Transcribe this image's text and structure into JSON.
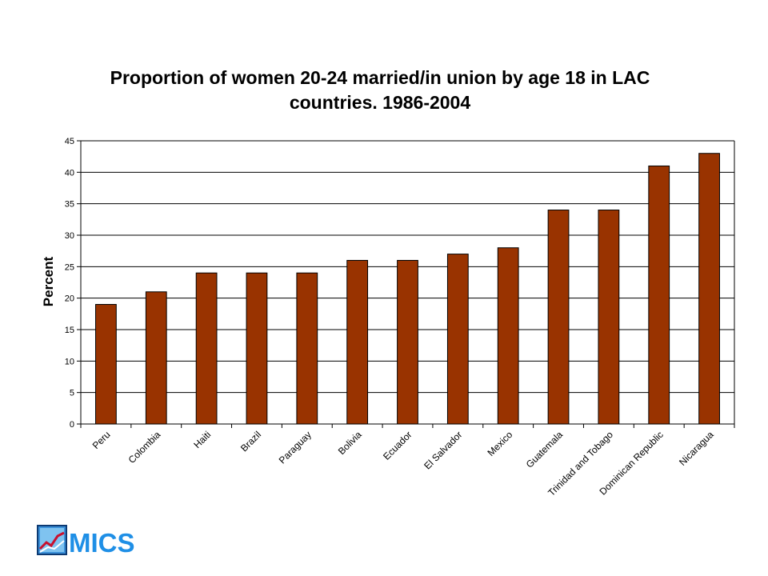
{
  "chart_data": {
    "type": "bar",
    "title_lines": [
      "Proportion of women 20-24 married/in union by age 18 in LAC",
      "countries. 1986-2004"
    ],
    "ylabel": "Percent",
    "xlabel": "",
    "ylim": [
      0,
      45
    ],
    "yticks": [
      0,
      5,
      10,
      15,
      20,
      25,
      30,
      35,
      40,
      45
    ],
    "grid": true,
    "legend": "none",
    "bar_color": "#993300",
    "categories": [
      "Peru",
      "Colombia",
      "Haiti",
      "Brazil",
      "Paraguay",
      "Bolivia",
      "Ecuador",
      "El Salvador",
      "Mexico",
      "Guatemala",
      "Trinidad and Tobago",
      "Dominican Republic",
      "Nicaragua"
    ],
    "values": [
      19,
      21,
      24,
      24,
      24,
      26,
      26,
      27,
      28,
      34,
      34,
      41,
      43
    ]
  },
  "logo": {
    "text": "MICS",
    "icon": "mics-logo-icon",
    "color": "#1f8fe6"
  }
}
